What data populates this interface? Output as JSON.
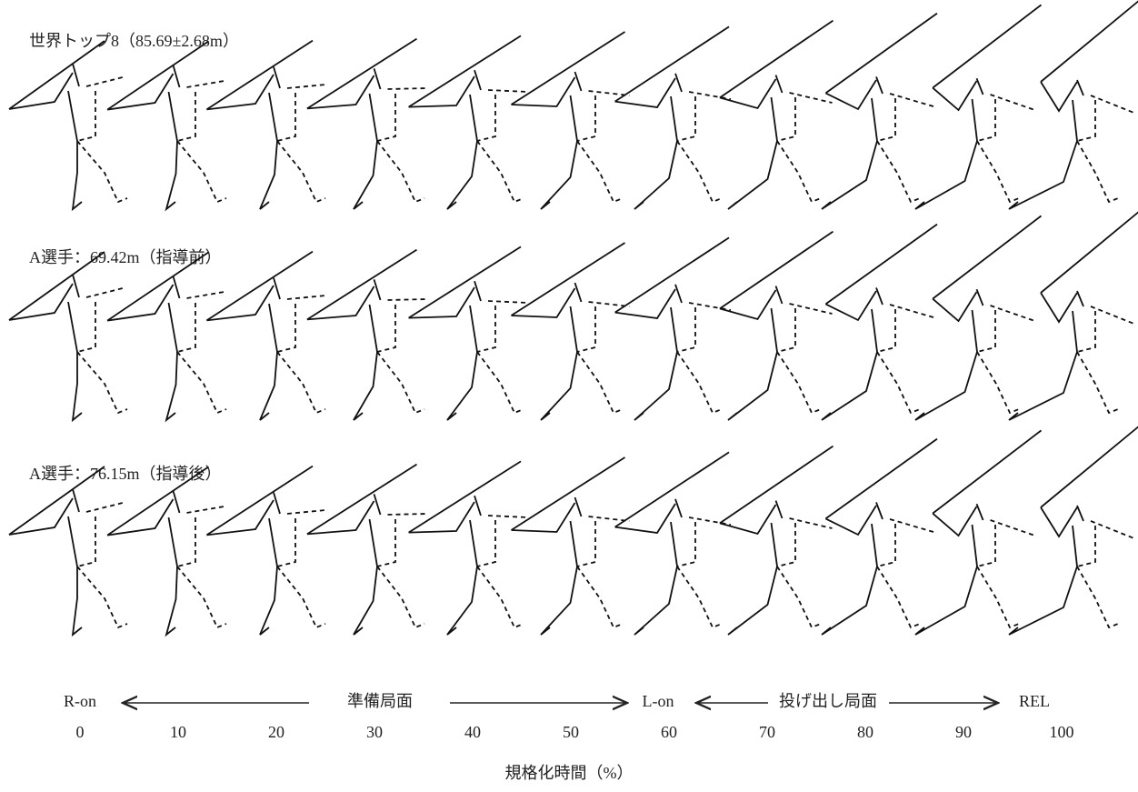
{
  "rows": [
    {
      "title": "世界トップ8（85.69±2.68m）"
    },
    {
      "title": "A選手：69.42m（指導前）"
    },
    {
      "title": "A選手：76.15m（指導後）"
    }
  ],
  "phases": {
    "r_on": "R-on",
    "prep": "準備局面",
    "l_on": "L-on",
    "release_phase": "投げ出し局面",
    "rel": "REL"
  },
  "ticks": [
    0,
    10,
    20,
    30,
    40,
    50,
    60,
    70,
    80,
    90,
    100
  ],
  "axis_label": "規格化時間（%）"
}
